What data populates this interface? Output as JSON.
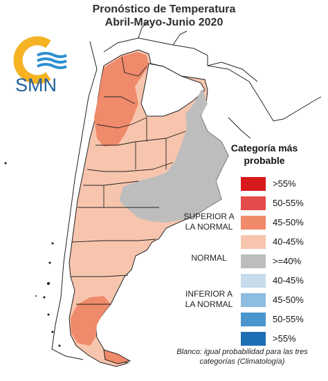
{
  "title": {
    "line1": "Pronóstico de Temperatura",
    "line2": "Abril-Mayo-Junio 2020"
  },
  "logo": {
    "text": "SMN",
    "icon": "sun-waves-logo-icon",
    "colors": {
      "sun": "#f5b324",
      "waves": "#2b8fd0",
      "text": "#1f5f9d"
    }
  },
  "legend": {
    "title": "Categoría más probable",
    "groups": {
      "superior": "SUPERIOR A LA NORMAL",
      "normal": "NORMAL",
      "inferior": "INFERIOR A LA NORMAL"
    },
    "items": [
      {
        "label": ">55%",
        "color": "#d7191c",
        "category": "superior"
      },
      {
        "label": "50-55%",
        "color": "#e34a4a",
        "category": "superior"
      },
      {
        "label": "45-50%",
        "color": "#ef8a6a",
        "category": "superior"
      },
      {
        "label": "40-45%",
        "color": "#f7c5ad",
        "category": "superior"
      },
      {
        "label": ">=40%",
        "color": "#bdbdbd",
        "category": "normal"
      },
      {
        "label": "40-45%",
        "color": "#c6dcec",
        "category": "inferior"
      },
      {
        "label": "45-50%",
        "color": "#8dbde0",
        "category": "inferior"
      },
      {
        "label": "50-55%",
        "color": "#4a95cc",
        "category": "inferior"
      },
      {
        "label": ">55%",
        "color": "#1f6fb4",
        "category": "inferior"
      }
    ]
  },
  "note": "Blanco: igual probabilidad para las tres categorías (Climatología)"
}
